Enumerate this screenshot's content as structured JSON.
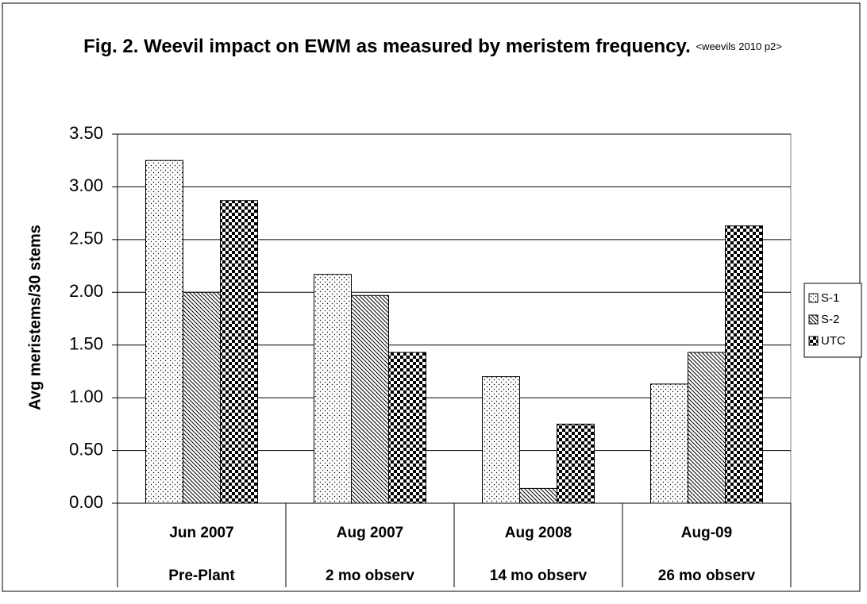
{
  "chart_data": {
    "type": "bar",
    "title": "Fig. 2. Weevil impact on EWM as measured by meristem frequency.",
    "subtitle": "<weevils 2010 p2>",
    "y_label": "Avg meristems/30 stems",
    "categories": [
      "Jun 2007",
      "Aug 2007",
      "Aug 2008",
      "Aug-09"
    ],
    "categories_level2": [
      "Pre-Plant",
      "2 mo observ",
      "14 mo observ",
      "26 mo observ"
    ],
    "series": [
      {
        "name": "S-1",
        "color": "#000000",
        "pattern": "dots",
        "values": [
          3.25,
          2.17,
          1.2,
          1.13
        ]
      },
      {
        "name": "S-2",
        "color": "#000000",
        "pattern": "diagonal",
        "values": [
          2.0,
          1.97,
          0.14,
          1.43
        ]
      },
      {
        "name": "UTC",
        "color": "#000000",
        "pattern": "checker",
        "values": [
          2.87,
          1.43,
          0.75,
          2.63
        ]
      }
    ],
    "ylim": [
      0,
      3.5
    ],
    "yticks": [
      {
        "value": 0,
        "label": "0.00"
      },
      {
        "value": 0.5,
        "label": "0.50"
      },
      {
        "value": 1,
        "label": "1.00"
      },
      {
        "value": 1.5,
        "label": "1.50"
      },
      {
        "value": 2,
        "label": "2.00"
      },
      {
        "value": 2.5,
        "label": "2.50"
      },
      {
        "value": 3,
        "label": "3.00"
      },
      {
        "value": 3.5,
        "label": "3.50"
      }
    ],
    "grid": true,
    "legend": "right"
  }
}
